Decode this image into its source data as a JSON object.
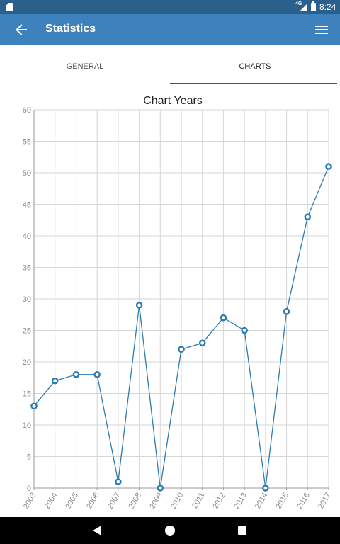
{
  "status_bar": {
    "network": "4G",
    "time": "8:24"
  },
  "app_bar": {
    "title": "Statistics"
  },
  "tabs": [
    {
      "label": "GENERAL",
      "active": false
    },
    {
      "label": "CHARTS",
      "active": true
    }
  ],
  "colors": {
    "primary": "#3e82bd",
    "primary_dark": "#2b5f8c",
    "line": "#2d7bb0"
  },
  "chart_data": {
    "type": "line",
    "title": "Chart Years",
    "xlabel": "",
    "ylabel": "",
    "categories": [
      "2003",
      "2004",
      "2005",
      "2006",
      "2007",
      "2008",
      "2009",
      "2010",
      "2011",
      "2012",
      "2013",
      "2014",
      "2015",
      "2016",
      "2017"
    ],
    "values": [
      13,
      17,
      18,
      18,
      1,
      29,
      0,
      22,
      23,
      27,
      25,
      0,
      28,
      43,
      51
    ],
    "ylim": [
      0,
      60
    ],
    "yticks": [
      0,
      5,
      10,
      15,
      20,
      25,
      30,
      35,
      40,
      45,
      50,
      55,
      60
    ],
    "grid": true,
    "legend": "none"
  }
}
